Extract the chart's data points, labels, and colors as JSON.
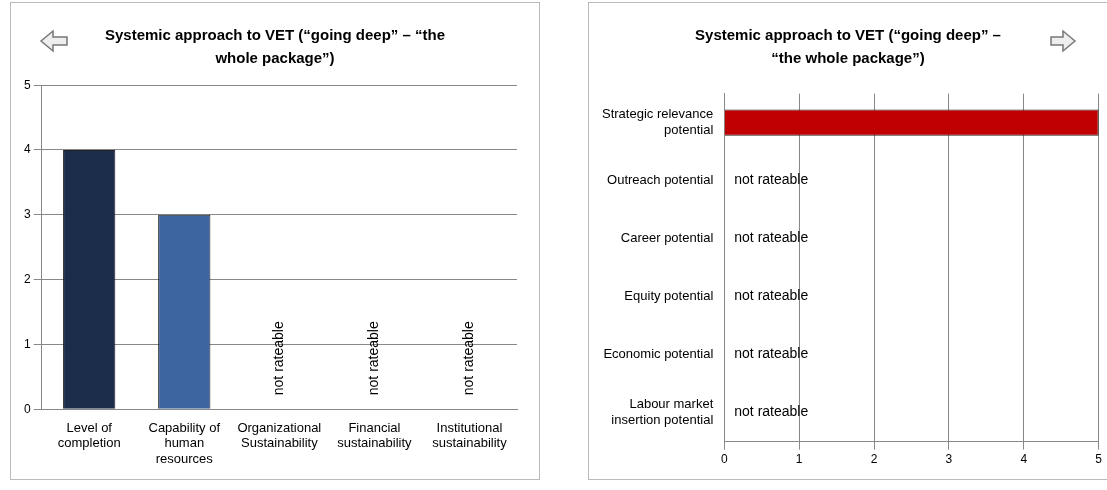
{
  "chart_data": [
    {
      "type": "bar",
      "title": "Systemic approach to VET (“going deep” – “the whole package”)",
      "categories": [
        "Level of completion",
        "Capability of human resources",
        "Organizational Sustainability",
        "Financial sustainability",
        "Institutional sustainability"
      ],
      "values": [
        4,
        3,
        null,
        null,
        null
      ],
      "colors": [
        "#1b2d4a",
        "#3d66a0",
        null,
        null,
        null
      ],
      "value_labels": [
        null,
        null,
        "not rateable",
        "not rateable",
        "not rateable"
      ],
      "ylim": [
        0,
        5
      ],
      "yticks": [
        0,
        1,
        2,
        3,
        4,
        5
      ],
      "grid": "y"
    },
    {
      "type": "bar",
      "orientation": "horizontal",
      "title": "Systemic approach to VET (“going deep” – “the whole package”)",
      "categories": [
        "Strategic relevance potential",
        "Outreach potential",
        "Career potential",
        "Equity potential",
        "Economic potential",
        "Labour market insertion potential"
      ],
      "values": [
        5,
        null,
        null,
        null,
        null,
        null
      ],
      "color": "#c00000",
      "value_labels": [
        null,
        "not rateable",
        "not rateable",
        "not rateable",
        "not rateable",
        "not rateable"
      ],
      "xlim": [
        0,
        5
      ],
      "xticks": [
        0,
        1,
        2,
        3,
        4,
        5
      ],
      "grid": "x"
    }
  ]
}
